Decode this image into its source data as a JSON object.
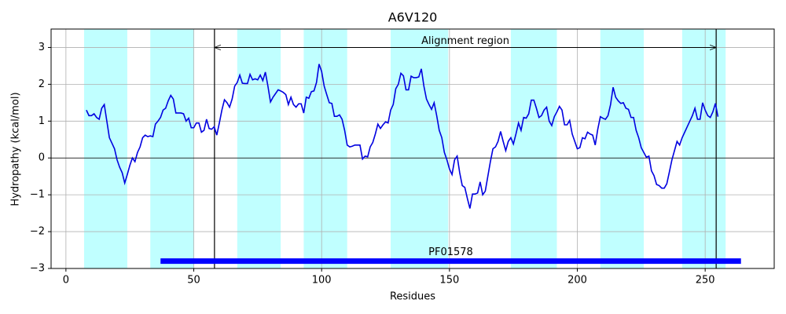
{
  "chart_data": {
    "type": "line",
    "title": "A6V120",
    "xlabel": "Residues",
    "ylabel": "Hydropathy (kcal/mol)",
    "color": "#0000e0",
    "x": [
      8,
      9,
      10,
      11,
      12,
      13,
      14,
      15,
      16,
      17,
      18,
      19,
      20,
      21,
      22,
      23,
      24,
      25,
      26,
      27,
      28,
      29,
      30,
      31,
      32,
      33,
      34,
      35,
      36,
      37,
      38,
      39,
      40,
      41,
      42,
      43,
      44,
      45,
      46,
      47,
      48,
      49,
      50,
      51,
      52,
      53,
      54,
      55,
      56,
      57,
      58,
      59,
      60,
      61,
      62,
      63,
      64,
      65,
      66,
      67,
      68,
      69,
      70,
      71,
      72,
      73,
      74,
      75,
      76,
      77,
      78,
      79,
      80,
      81,
      82,
      83,
      84,
      85,
      86,
      87,
      88,
      89,
      90,
      91,
      92,
      93,
      94,
      95,
      96,
      97,
      98,
      99,
      100,
      101,
      102,
      103,
      104,
      105,
      106,
      107,
      108,
      109,
      110,
      111,
      112,
      113,
      114,
      115,
      116,
      117,
      118,
      119,
      120,
      121,
      122,
      123,
      124,
      125,
      126,
      127,
      128,
      129,
      130,
      131,
      132,
      133,
      134,
      135,
      136,
      137,
      138,
      139,
      140,
      141,
      142,
      143,
      144,
      145,
      146,
      147,
      148,
      149,
      150,
      151,
      152,
      153,
      154,
      155,
      156,
      157,
      158,
      159,
      160,
      161,
      162,
      163,
      164,
      165,
      166,
      167,
      168,
      169,
      170,
      171,
      172,
      173,
      174,
      175,
      176,
      177,
      178,
      179,
      180,
      181,
      182,
      183,
      184,
      185,
      186,
      187,
      188,
      189,
      190,
      191,
      192,
      193,
      194,
      195,
      196,
      197,
      198,
      199,
      200,
      201,
      202,
      203,
      204,
      205,
      206,
      207,
      208,
      209,
      210,
      211,
      212,
      213,
      214,
      215,
      216,
      217,
      218,
      219,
      220,
      221,
      222,
      223,
      224,
      225,
      226,
      227,
      228,
      229,
      230,
      231,
      232,
      233,
      234,
      235,
      236,
      237,
      238,
      239,
      240,
      241,
      242,
      243,
      244,
      245,
      246,
      247,
      248,
      249,
      250,
      251,
      252,
      253,
      254,
      255
    ],
    "values": [
      1.3,
      1.15,
      1.15,
      1.2,
      1.1,
      1.05,
      1.35,
      1.45,
      1.0,
      0.55,
      0.4,
      0.25,
      -0.05,
      -0.25,
      -0.4,
      -0.68,
      -0.45,
      -0.2,
      0.0,
      -0.1,
      0.15,
      0.3,
      0.55,
      0.62,
      0.58,
      0.6,
      0.58,
      0.92,
      1.0,
      1.1,
      1.3,
      1.35,
      1.55,
      1.7,
      1.6,
      1.22,
      1.22,
      1.22,
      1.2,
      1.0,
      1.08,
      0.82,
      0.82,
      0.95,
      0.95,
      0.7,
      0.75,
      1.05,
      0.8,
      0.78,
      0.85,
      0.62,
      0.95,
      1.3,
      1.58,
      1.5,
      1.38,
      1.6,
      1.95,
      2.05,
      2.25,
      2.03,
      2.02,
      2.02,
      2.27,
      2.12,
      2.15,
      2.12,
      2.25,
      2.1,
      2.33,
      1.95,
      1.52,
      1.65,
      1.75,
      1.85,
      1.82,
      1.78,
      1.72,
      1.45,
      1.65,
      1.45,
      1.38,
      1.47,
      1.47,
      1.22,
      1.65,
      1.62,
      1.8,
      1.82,
      2.05,
      2.55,
      2.35,
      1.95,
      1.72,
      1.5,
      1.48,
      1.13,
      1.13,
      1.17,
      1.05,
      0.75,
      0.35,
      0.3,
      0.32,
      0.35,
      0.35,
      0.35,
      -0.03,
      0.05,
      0.03,
      0.3,
      0.42,
      0.65,
      0.92,
      0.8,
      0.9,
      0.98,
      0.95,
      1.3,
      1.45,
      1.88,
      2.0,
      2.3,
      2.23,
      1.85,
      1.85,
      2.22,
      2.18,
      2.18,
      2.2,
      2.42,
      1.95,
      1.6,
      1.45,
      1.32,
      1.5,
      1.15,
      0.75,
      0.55,
      0.15,
      -0.05,
      -0.3,
      -0.45,
      -0.05,
      0.05,
      -0.4,
      -0.75,
      -0.8,
      -1.1,
      -1.37,
      -0.98,
      -0.98,
      -0.95,
      -0.65,
      -1.0,
      -0.9,
      -0.5,
      -0.1,
      0.25,
      0.3,
      0.45,
      0.72,
      0.45,
      0.2,
      0.45,
      0.55,
      0.38,
      0.65,
      0.95,
      0.75,
      1.1,
      1.08,
      1.2,
      1.57,
      1.57,
      1.35,
      1.1,
      1.15,
      1.3,
      1.38,
      1.0,
      0.88,
      1.12,
      1.25,
      1.4,
      1.3,
      0.9,
      0.9,
      1.02,
      0.65,
      0.45,
      0.25,
      0.28,
      0.55,
      0.52,
      0.7,
      0.65,
      0.62,
      0.35,
      0.78,
      1.12,
      1.08,
      1.05,
      1.15,
      1.45,
      1.92,
      1.65,
      1.55,
      1.48,
      1.5,
      1.35,
      1.32,
      1.1,
      1.1,
      0.75,
      0.55,
      0.28,
      0.15,
      0.02,
      0.05,
      -0.35,
      -0.48,
      -0.72,
      -0.75,
      -0.82,
      -0.82,
      -0.7,
      -0.38,
      -0.05,
      0.2,
      0.45,
      0.35,
      0.55,
      0.7,
      0.85,
      1.0,
      1.15,
      1.35,
      1.05,
      1.05,
      1.5,
      1.3,
      1.15,
      1.1,
      1.25,
      1.48,
      1.12
    ],
    "xlim": [
      -5.8,
      277
    ],
    "ylim": [
      -3,
      3.5
    ],
    "xticks": [
      0,
      50,
      100,
      150,
      200,
      250
    ],
    "yticks": [
      {
        "value": -3,
        "label": "−3"
      },
      {
        "value": -2,
        "label": "−2"
      },
      {
        "value": -1,
        "label": "−1"
      },
      0,
      1,
      2,
      3
    ],
    "grid": true,
    "zero_line": 0,
    "bands": [
      [
        7.1,
        24
      ],
      [
        33,
        50
      ],
      [
        67,
        84
      ],
      [
        93,
        110
      ],
      [
        127,
        149.5
      ],
      [
        174,
        192
      ],
      [
        209,
        226
      ],
      [
        241,
        258
      ]
    ],
    "band_color": "#c0ffff",
    "vlines": [
      58.1,
      254.3
    ],
    "alignment": {
      "label": "Alignment region",
      "start": 58.1,
      "end": 254.3,
      "y": 3
    },
    "domain": {
      "label": "PF01578",
      "start": 37,
      "end": 264,
      "y": -2.8,
      "color": "#0000ff"
    }
  }
}
